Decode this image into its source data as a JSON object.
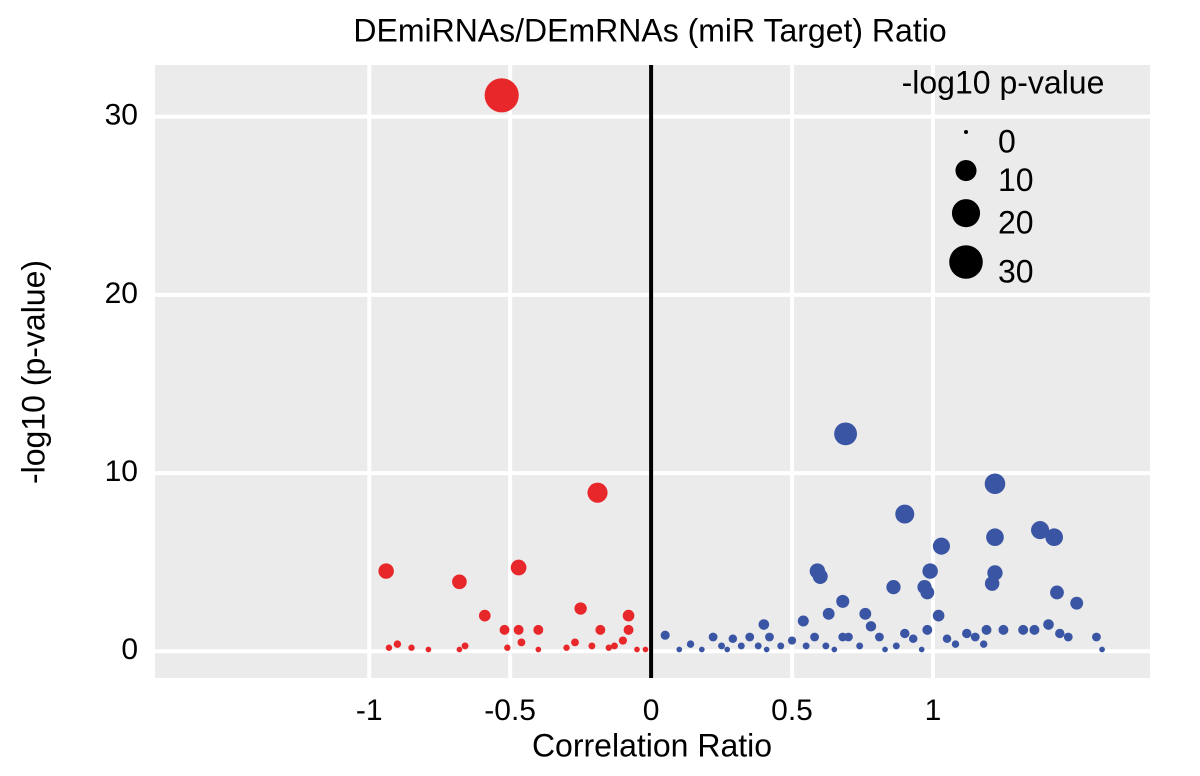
{
  "chart_data": {
    "type": "scatter",
    "title": "DEmiRNAs/DEmRNAs (miR Target)  Ratio",
    "x_label": "Correlation Ratio",
    "y_label": "-log10 (p-value)",
    "xlim": [
      -1.76,
      1.77
    ],
    "ylim": [
      -1.5,
      32.9
    ],
    "xticks": [
      -1,
      -0.5,
      0,
      0.5,
      1
    ],
    "yticks": [
      0,
      10,
      20,
      30
    ],
    "grid": true,
    "zero_line_color": "#000000",
    "size_legend": {
      "title": "-log10 p-value",
      "values": [
        0,
        10,
        20,
        30
      ],
      "color": "#000000",
      "position": "top-right"
    },
    "series": [
      {
        "color": "#e8272a",
        "x": [
          -0.53,
          -0.19,
          -0.94,
          -0.68,
          -0.47,
          -0.59,
          -0.25,
          -0.08,
          -0.52,
          -0.47,
          -0.4,
          -0.18,
          -0.08,
          -0.46,
          -0.27,
          -0.1,
          -0.13,
          -0.9,
          -0.93,
          -0.85,
          -0.79,
          -0.68,
          -0.66,
          -0.51,
          -0.4,
          -0.3,
          -0.21,
          -0.15,
          -0.05,
          -0.02
        ],
        "values": [
          31.2,
          8.9,
          4.5,
          3.9,
          4.7,
          2.0,
          2.4,
          2.0,
          1.2,
          1.2,
          1.2,
          1.2,
          1.2,
          0.5,
          0.5,
          0.6,
          0.3,
          0.4,
          0.2,
          0.2,
          0.1,
          0.1,
          0.3,
          0.2,
          0.1,
          0.2,
          0.3,
          0.2,
          0.1,
          0.1
        ]
      },
      {
        "color": "#3a55a4",
        "x": [
          0.69,
          1.22,
          0.9,
          1.38,
          1.43,
          1.03,
          1.22,
          0.59,
          0.6,
          0.99,
          1.22,
          0.97,
          0.86,
          1.21,
          0.98,
          1.44,
          1.51,
          0.68,
          0.63,
          0.76,
          1.02,
          0.54,
          0.78,
          0.4,
          0.9,
          0.98,
          1.12,
          1.19,
          1.25,
          1.32,
          1.36,
          1.41,
          1.45,
          1.48,
          1.58,
          0.05,
          0.22,
          0.29,
          0.35,
          0.42,
          0.5,
          0.58,
          0.68,
          0.7,
          0.81,
          0.93,
          1.05,
          1.15,
          0.14,
          0.25,
          0.32,
          0.38,
          0.46,
          0.55,
          0.62,
          0.74,
          0.87,
          1.08,
          1.18,
          1.6,
          0.1,
          0.18,
          0.27,
          0.41,
          0.65,
          0.83,
          0.96
        ],
        "values": [
          12.2,
          9.4,
          7.7,
          6.8,
          6.4,
          5.9,
          6.4,
          4.5,
          4.2,
          4.5,
          4.4,
          3.6,
          3.6,
          3.8,
          3.3,
          3.3,
          2.7,
          2.8,
          2.1,
          2.1,
          2.0,
          1.7,
          1.4,
          1.5,
          1.0,
          1.2,
          1.0,
          1.2,
          1.2,
          1.2,
          1.2,
          1.5,
          1.0,
          0.8,
          0.8,
          0.9,
          0.8,
          0.7,
          0.8,
          0.8,
          0.6,
          0.8,
          0.8,
          0.8,
          0.8,
          0.7,
          0.7,
          0.8,
          0.4,
          0.3,
          0.3,
          0.3,
          0.3,
          0.3,
          0.3,
          0.3,
          0.3,
          0.4,
          0.4,
          0.1,
          0.1,
          0.1,
          0.1,
          0.1,
          0.1,
          0.1,
          0.1
        ]
      }
    ]
  }
}
